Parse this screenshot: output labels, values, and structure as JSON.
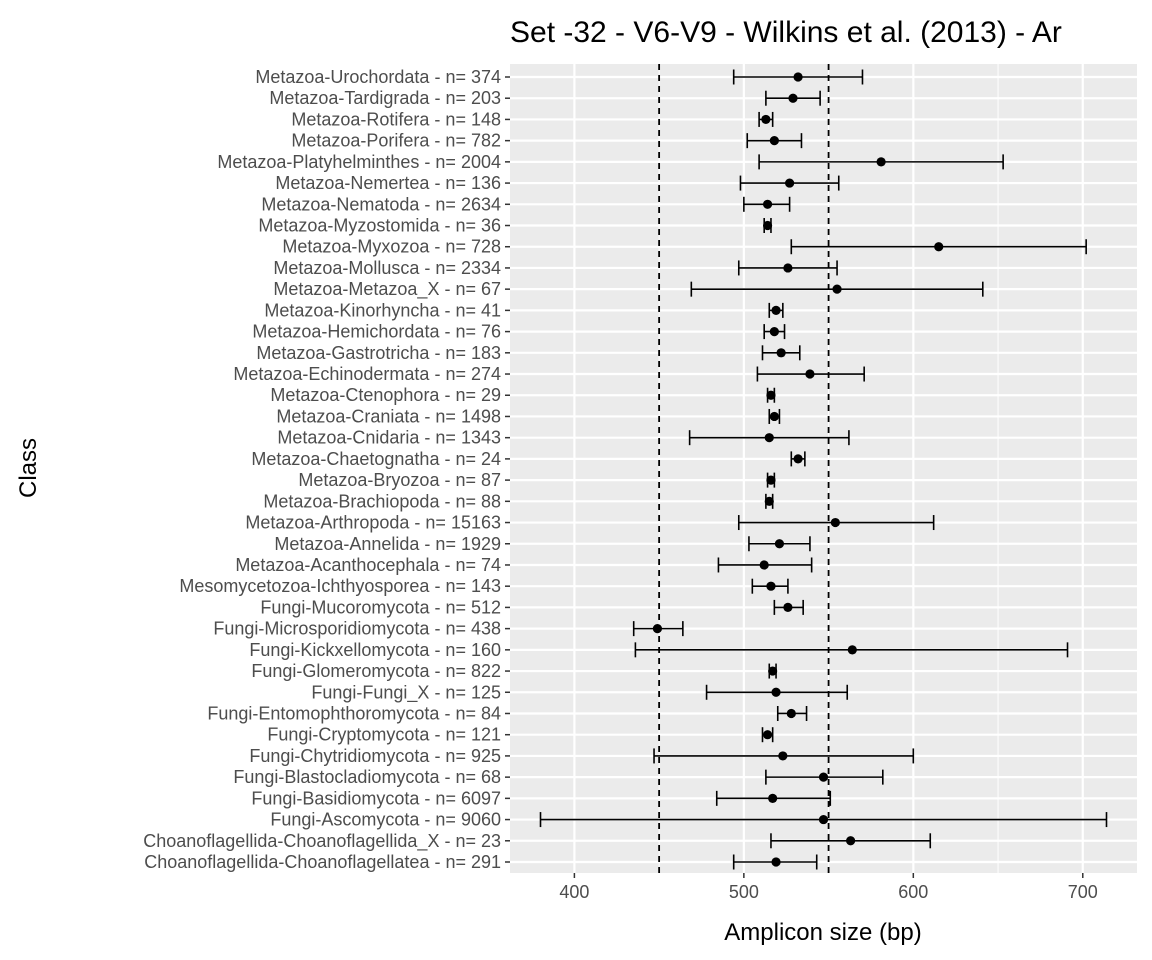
{
  "chart_data": {
    "type": "errorbar",
    "title": "Set -32 - V6-V9 - Wilkins et al. (2013) - Ar",
    "xlabel": "Amplicon size (bp)",
    "ylabel": "Class",
    "xlim": [
      362,
      732
    ],
    "xticks": [
      400,
      500,
      600,
      700
    ],
    "reference_lines": [
      450,
      550
    ],
    "grid": true,
    "colors": {
      "panel": "#ebebeb",
      "grid": "#ffffff",
      "marks": "#000000",
      "tick_label": "#4d4d4d"
    },
    "categories": [
      "Metazoa-Urochordata - n= 374",
      "Metazoa-Tardigrada - n= 203",
      "Metazoa-Rotifera - n= 148",
      "Metazoa-Porifera - n= 782",
      "Metazoa-Platyhelminthes - n= 2004",
      "Metazoa-Nemertea - n= 136",
      "Metazoa-Nematoda - n= 2634",
      "Metazoa-Myzostomida - n= 36",
      "Metazoa-Myxozoa - n= 728",
      "Metazoa-Mollusca - n= 2334",
      "Metazoa-Metazoa_X - n= 67",
      "Metazoa-Kinorhyncha - n= 41",
      "Metazoa-Hemichordata - n= 76",
      "Metazoa-Gastrotricha - n= 183",
      "Metazoa-Echinodermata - n= 274",
      "Metazoa-Ctenophora - n= 29",
      "Metazoa-Craniata - n= 1498",
      "Metazoa-Cnidaria - n= 1343",
      "Metazoa-Chaetognatha - n= 24",
      "Metazoa-Bryozoa - n= 87",
      "Metazoa-Brachiopoda - n= 88",
      "Metazoa-Arthropoda - n= 15163",
      "Metazoa-Annelida - n= 1929",
      "Metazoa-Acanthocephala - n= 74",
      "Mesomycetozoa-Ichthyosporea - n= 143",
      "Fungi-Mucoromycota - n= 512",
      "Fungi-Microsporidiomycota - n= 438",
      "Fungi-Kickxellomycota - n= 160",
      "Fungi-Glomeromycota - n= 822",
      "Fungi-Fungi_X - n= 125",
      "Fungi-Entomophthoromycota - n= 84",
      "Fungi-Cryptomycota - n= 121",
      "Fungi-Chytridiomycota - n= 925",
      "Fungi-Blastocladiomycota - n= 68",
      "Fungi-Basidiomycota - n= 6097",
      "Fungi-Ascomycota - n= 9060",
      "Choanoflagellida-Choanoflagellida_X - n= 23",
      "Choanoflagellida-Choanoflagellatea - n= 291"
    ],
    "mean": [
      532,
      529,
      513,
      518,
      581,
      527,
      514,
      514,
      615,
      526,
      555,
      519,
      518,
      522,
      539,
      516,
      518,
      515,
      532,
      516,
      515,
      554,
      521,
      512,
      516,
      526,
      449,
      564,
      517,
      519,
      528,
      514,
      523,
      547,
      517,
      547,
      563,
      519
    ],
    "lower": [
      494,
      513,
      509,
      502,
      509,
      498,
      500,
      512,
      528,
      497,
      469,
      515,
      512,
      511,
      508,
      514,
      515,
      468,
      528,
      514,
      513,
      497,
      503,
      485,
      505,
      518,
      435,
      436,
      515,
      478,
      520,
      511,
      447,
      513,
      484,
      380,
      516,
      494
    ],
    "upper": [
      570,
      545,
      517,
      534,
      653,
      556,
      527,
      516,
      702,
      555,
      641,
      523,
      524,
      533,
      571,
      518,
      521,
      562,
      536,
      518,
      517,
      612,
      539,
      540,
      526,
      535,
      464,
      691,
      519,
      561,
      537,
      517,
      600,
      582,
      551,
      714,
      610,
      543
    ]
  }
}
